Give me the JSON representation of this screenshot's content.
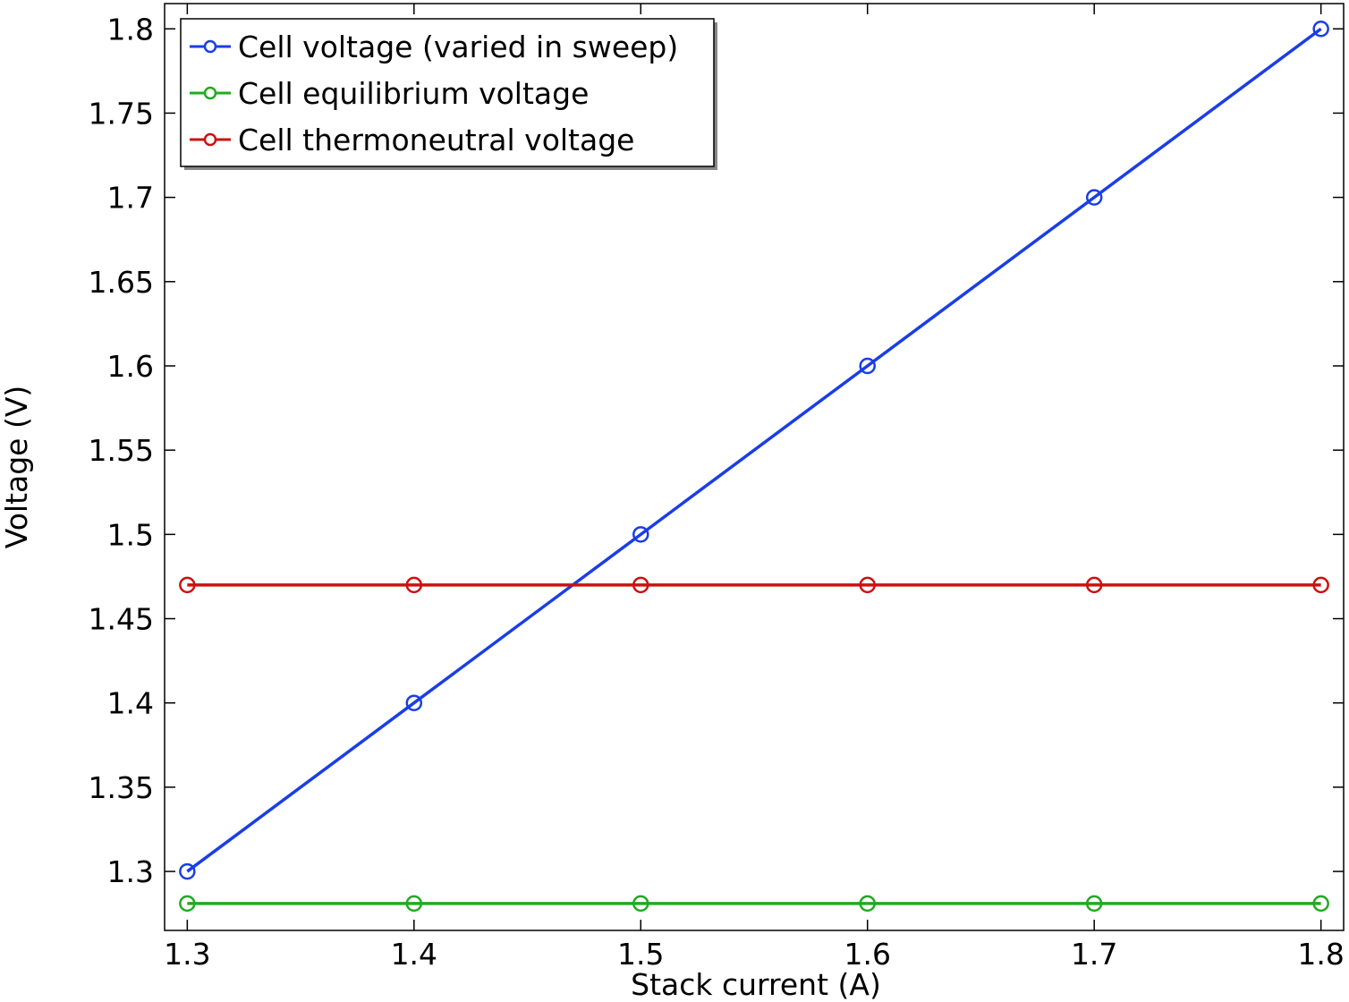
{
  "chart_data": {
    "type": "line",
    "title": "",
    "xlabel": "Stack current (A)",
    "ylabel": "Voltage (V)",
    "xlim": [
      1.29,
      1.81
    ],
    "ylim": [
      1.265,
      1.815
    ],
    "grid": false,
    "legend_position": "top-left",
    "x_ticks": [
      1.3,
      1.4,
      1.5,
      1.6,
      1.7,
      1.8
    ],
    "x_tick_labels": [
      "1.3",
      "1.4",
      "1.5",
      "1.6",
      "1.7",
      "1.8"
    ],
    "y_ticks": [
      1.3,
      1.35,
      1.4,
      1.45,
      1.5,
      1.55,
      1.6,
      1.65,
      1.7,
      1.75,
      1.8
    ],
    "y_tick_labels": [
      "1.3",
      "1.35",
      "1.4",
      "1.45",
      "1.5",
      "1.55",
      "1.6",
      "1.65",
      "1.7",
      "1.75",
      "1.8"
    ],
    "x": [
      1.3,
      1.4,
      1.5,
      1.6,
      1.7,
      1.8
    ],
    "series": [
      {
        "name": "Cell voltage (varied in sweep)",
        "color": "#1a3ee6",
        "marker": "circle",
        "values": [
          1.3,
          1.4,
          1.5,
          1.6,
          1.7,
          1.8
        ]
      },
      {
        "name": "Cell equilibrium voltage",
        "color": "#22aa22",
        "marker": "circle",
        "values": [
          1.281,
          1.281,
          1.281,
          1.281,
          1.281,
          1.281
        ]
      },
      {
        "name": "Cell thermoneutral voltage",
        "color": "#cc1111",
        "marker": "circle",
        "values": [
          1.47,
          1.47,
          1.47,
          1.47,
          1.47,
          1.47
        ]
      }
    ]
  }
}
